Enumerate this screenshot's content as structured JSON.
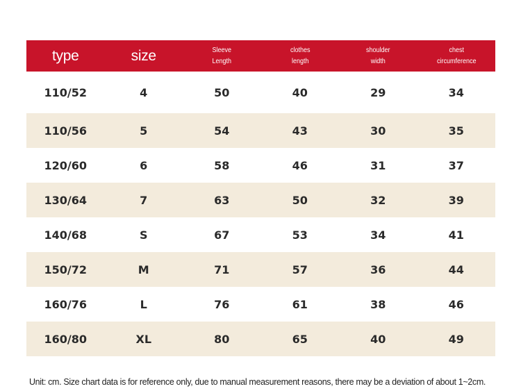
{
  "header": {
    "type": "type",
    "size": "size",
    "sleeve_l1": "Sleeve",
    "sleeve_l2": "Length",
    "clothes_l1": "clothes",
    "clothes_l2": "length",
    "shoulder_l1": "shoulder",
    "shoulder_l2": "width",
    "chest_l1": "chest",
    "chest_l2": "circumference"
  },
  "rows": [
    [
      "110/52",
      "4",
      "50",
      "40",
      "29",
      "34"
    ],
    [
      "110/56",
      "5",
      "54",
      "43",
      "30",
      "35"
    ],
    [
      "120/60",
      "6",
      "58",
      "46",
      "31",
      "37"
    ],
    [
      "130/64",
      "7",
      "63",
      "50",
      "32",
      "39"
    ],
    [
      "140/68",
      "S",
      "67",
      "53",
      "34",
      "41"
    ],
    [
      "150/72",
      "M",
      "71",
      "57",
      "36",
      "44"
    ],
    [
      "160/76",
      "L",
      "76",
      "61",
      "38",
      "46"
    ],
    [
      "160/80",
      "XL",
      "80",
      "65",
      "40",
      "49"
    ]
  ],
  "note": "Unit: cm. Size chart data is for reference only, due to manual measurement reasons, there may be a deviation of about 1~2cm.",
  "colors": {
    "header_bg": "#c8142a",
    "stripe_bg": "#f3ebdc"
  }
}
